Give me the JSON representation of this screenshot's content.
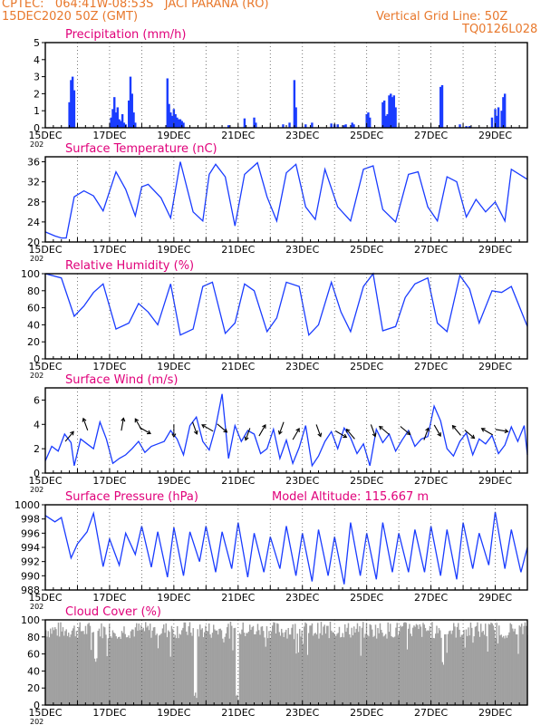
{
  "header": {
    "line1_left": "CPTEC:   064:41W-08:53S   JACI PARANA (RO)",
    "line2_left": "15DEC2020 50Z (GMT)",
    "line2_right": "Vertical Grid Line: 50Z",
    "line3_right": "TQ0126L028"
  },
  "colors": {
    "header": "#e8782c",
    "title": "#e0007a",
    "series": "#1a3cff",
    "cloud": "#a0a0a0",
    "grid": "#555555"
  },
  "x_axis": {
    "tick_labels": [
      "15DEC",
      "17DEC",
      "19DEC",
      "21DEC",
      "23DEC",
      "25DEC",
      "27DEC",
      "29DEC"
    ],
    "tick_days": [
      0,
      2,
      4,
      6,
      8,
      10,
      12,
      14
    ],
    "range_days": [
      0,
      15
    ],
    "year_stub": "202"
  },
  "chart_data": [
    {
      "id": "precip",
      "type": "bar",
      "title": "Precipitation  (mm/h)",
      "ylim": [
        0,
        5
      ],
      "yticks": [
        0,
        1,
        2,
        3,
        4,
        5
      ],
      "x": [
        0.75,
        0.8,
        0.85,
        0.9,
        2.05,
        2.1,
        2.15,
        2.2,
        2.25,
        2.3,
        2.35,
        2.4,
        2.45,
        2.5,
        2.6,
        2.65,
        2.7,
        2.75,
        2.8,
        3.8,
        3.85,
        3.9,
        3.95,
        4.0,
        4.05,
        4.1,
        4.15,
        4.2,
        4.25,
        4.3,
        5.7,
        6.2,
        6.5,
        6.55,
        7.4,
        7.6,
        7.75,
        7.8,
        8.1,
        8.3,
        8.9,
        9.0,
        9.1,
        9.3,
        9.35,
        9.55,
        9.6,
        10.0,
        10.05,
        10.1,
        10.5,
        10.55,
        10.6,
        10.65,
        10.7,
        10.75,
        10.8,
        10.85,
        10.9,
        12.3,
        12.35,
        12.9,
        13.1,
        13.2,
        13.9,
        14.0,
        14.05,
        14.1,
        14.2,
        14.25,
        14.3
      ],
      "values": [
        1.5,
        2.8,
        3.0,
        2.2,
        0.6,
        1.1,
        1.8,
        0.9,
        1.2,
        0.5,
        0.4,
        0.8,
        0.3,
        0.2,
        1.6,
        3.0,
        2.0,
        0.9,
        0.3,
        2.9,
        1.4,
        0.9,
        0.7,
        1.1,
        0.8,
        0.6,
        0.5,
        0.5,
        0.4,
        0.3,
        0.15,
        0.55,
        0.6,
        0.3,
        0.2,
        0.3,
        2.8,
        1.2,
        0.2,
        0.3,
        0.25,
        0.2,
        0.2,
        0.15,
        0.2,
        0.3,
        0.2,
        0.8,
        0.9,
        0.6,
        1.5,
        1.6,
        0.7,
        0.8,
        1.9,
        2.0,
        1.8,
        1.9,
        1.2,
        2.4,
        2.5,
        0.2,
        0.1,
        0.1,
        0.6,
        1.1,
        0.7,
        1.2,
        1.0,
        1.8,
        2.0
      ]
    },
    {
      "id": "temp",
      "type": "line",
      "title": "Surface Temperature (nC)",
      "ylim": [
        20,
        37
      ],
      "yticks": [
        20,
        24,
        28,
        32,
        36
      ],
      "x": [
        0.0,
        0.3,
        0.5,
        0.65,
        0.9,
        1.2,
        1.5,
        1.8,
        2.2,
        2.5,
        2.8,
        3.0,
        3.2,
        3.6,
        3.9,
        4.2,
        4.6,
        4.9,
        5.1,
        5.3,
        5.6,
        5.9,
        6.2,
        6.6,
        6.9,
        7.2,
        7.5,
        7.8,
        8.1,
        8.4,
        8.7,
        9.1,
        9.5,
        9.9,
        10.2,
        10.5,
        10.9,
        11.3,
        11.6,
        11.9,
        12.2,
        12.5,
        12.8,
        13.1,
        13.4,
        13.7,
        14.0,
        14.3,
        14.5,
        15.0
      ],
      "values": [
        22.0,
        21.2,
        20.8,
        20.8,
        29.0,
        30.2,
        29.2,
        26.2,
        34.0,
        30.5,
        25.2,
        31.0,
        31.5,
        28.8,
        24.8,
        36.0,
        26.0,
        24.2,
        33.5,
        35.5,
        33.0,
        23.2,
        33.5,
        35.8,
        29.0,
        24.2,
        33.8,
        35.5,
        27.0,
        24.5,
        34.5,
        27.0,
        24.2,
        34.5,
        35.2,
        26.5,
        24.0,
        33.5,
        34.0,
        27.0,
        24.2,
        33.0,
        32.0,
        25.0,
        28.5,
        26.0,
        28.0,
        24.2,
        34.5,
        32.5
      ]
    },
    {
      "id": "rh",
      "type": "line",
      "title": "Relative Humidity (%)",
      "ylim": [
        0,
        100
      ],
      "yticks": [
        0,
        20,
        40,
        60,
        80,
        100
      ],
      "x": [
        0.0,
        0.5,
        0.9,
        1.2,
        1.5,
        1.8,
        2.2,
        2.6,
        2.9,
        3.2,
        3.5,
        3.9,
        4.2,
        4.6,
        4.9,
        5.2,
        5.6,
        5.9,
        6.2,
        6.5,
        6.9,
        7.2,
        7.5,
        7.9,
        8.2,
        8.5,
        8.9,
        9.2,
        9.5,
        9.9,
        10.2,
        10.5,
        10.9,
        11.2,
        11.5,
        11.9,
        12.2,
        12.5,
        12.9,
        13.2,
        13.5,
        13.9,
        14.2,
        14.5,
        15.0
      ],
      "values": [
        100,
        95,
        50,
        62,
        78,
        88,
        35,
        42,
        65,
        55,
        40,
        88,
        28,
        35,
        85,
        90,
        30,
        42,
        88,
        80,
        32,
        48,
        90,
        85,
        28,
        40,
        90,
        55,
        32,
        85,
        100,
        33,
        38,
        72,
        88,
        95,
        42,
        32,
        98,
        82,
        42,
        80,
        78,
        85,
        38
      ]
    },
    {
      "id": "wind",
      "type": "line",
      "title": "Surface Wind (m/s)",
      "ylim": [
        0,
        7
      ],
      "yticks": [
        0,
        2,
        4,
        6
      ],
      "x": [
        0.0,
        0.2,
        0.4,
        0.6,
        0.8,
        0.9,
        1.1,
        1.3,
        1.5,
        1.7,
        1.9,
        2.1,
        2.3,
        2.5,
        2.7,
        2.9,
        3.1,
        3.3,
        3.5,
        3.7,
        3.9,
        4.1,
        4.3,
        4.5,
        4.7,
        4.9,
        5.1,
        5.3,
        5.5,
        5.7,
        5.9,
        6.1,
        6.3,
        6.5,
        6.7,
        6.9,
        7.1,
        7.3,
        7.5,
        7.7,
        7.9,
        8.1,
        8.3,
        8.5,
        8.7,
        8.9,
        9.1,
        9.3,
        9.5,
        9.7,
        9.9,
        10.1,
        10.3,
        10.5,
        10.7,
        10.9,
        11.1,
        11.3,
        11.5,
        11.7,
        11.9,
        12.1,
        12.3,
        12.5,
        12.7,
        12.9,
        13.1,
        13.3,
        13.5,
        13.7,
        13.9,
        14.1,
        14.3,
        14.5,
        14.7,
        14.9,
        15.0
      ],
      "values": [
        1.0,
        2.2,
        1.8,
        3.2,
        2.5,
        0.6,
        2.8,
        2.4,
        2.0,
        4.2,
        2.8,
        0.8,
        1.2,
        1.5,
        2.0,
        2.6,
        1.7,
        2.2,
        2.4,
        2.6,
        3.5,
        2.8,
        1.5,
        3.9,
        4.6,
        2.6,
        1.9,
        3.8,
        6.5,
        1.2,
        3.9,
        2.6,
        3.5,
        3.2,
        1.6,
        2.0,
        3.6,
        1.2,
        2.7,
        0.8,
        2.1,
        3.9,
        0.6,
        1.4,
        2.6,
        3.4,
        2.0,
        3.7,
        2.9,
        1.6,
        2.4,
        0.6,
        3.6,
        2.5,
        3.2,
        1.8,
        2.7,
        3.5,
        2.2,
        2.8,
        3.0,
        5.5,
        4.3,
        2.0,
        1.4,
        2.6,
        3.3,
        1.5,
        2.8,
        2.4,
        3.1,
        1.6,
        2.3,
        3.8,
        2.6,
        3.9,
        1.5
      ]
    },
    {
      "id": "pressure",
      "type": "line",
      "title": "Surface Pressure (hPa)",
      "annotation": "Model Altitude: 115.667  m",
      "ylim": [
        988,
        1000
      ],
      "yticks": [
        988,
        990,
        992,
        994,
        996,
        998,
        1000
      ],
      "x": [
        0.0,
        0.3,
        0.5,
        0.8,
        1.0,
        1.3,
        1.5,
        1.8,
        2.0,
        2.3,
        2.5,
        2.8,
        3.0,
        3.3,
        3.5,
        3.8,
        4.0,
        4.3,
        4.5,
        4.8,
        5.0,
        5.3,
        5.5,
        5.8,
        6.0,
        6.3,
        6.5,
        6.8,
        7.0,
        7.3,
        7.5,
        7.8,
        8.0,
        8.3,
        8.5,
        8.8,
        9.0,
        9.3,
        9.5,
        9.8,
        10.0,
        10.3,
        10.5,
        10.8,
        11.0,
        11.3,
        11.5,
        11.8,
        12.0,
        12.3,
        12.5,
        12.8,
        13.0,
        13.3,
        13.5,
        13.8,
        14.0,
        14.3,
        14.5,
        14.8,
        15.0
      ],
      "values": [
        998.5,
        997.6,
        998.2,
        992.5,
        994.5,
        996.2,
        998.8,
        991.3,
        995.2,
        991.5,
        996.0,
        993.0,
        997.0,
        991.2,
        996.2,
        989.8,
        996.8,
        990.0,
        996.2,
        992.0,
        997.0,
        990.5,
        996.2,
        991.0,
        997.5,
        989.8,
        996.0,
        990.5,
        995.5,
        991.0,
        997.0,
        990.0,
        996.0,
        989.2,
        996.5,
        990.0,
        995.5,
        988.8,
        997.5,
        990.0,
        996.0,
        989.5,
        997.5,
        990.5,
        996.0,
        990.5,
        996.5,
        990.5,
        997.0,
        990.0,
        996.5,
        989.5,
        997.5,
        991.0,
        996.0,
        991.5,
        999.0,
        991.0,
        996.5,
        990.5,
        994.0
      ]
    },
    {
      "id": "cloud",
      "type": "bar",
      "title": "Cloud Cover (%)",
      "ylim": [
        0,
        100
      ],
      "yticks": [
        0,
        20,
        40,
        60,
        80,
        100
      ]
    }
  ]
}
